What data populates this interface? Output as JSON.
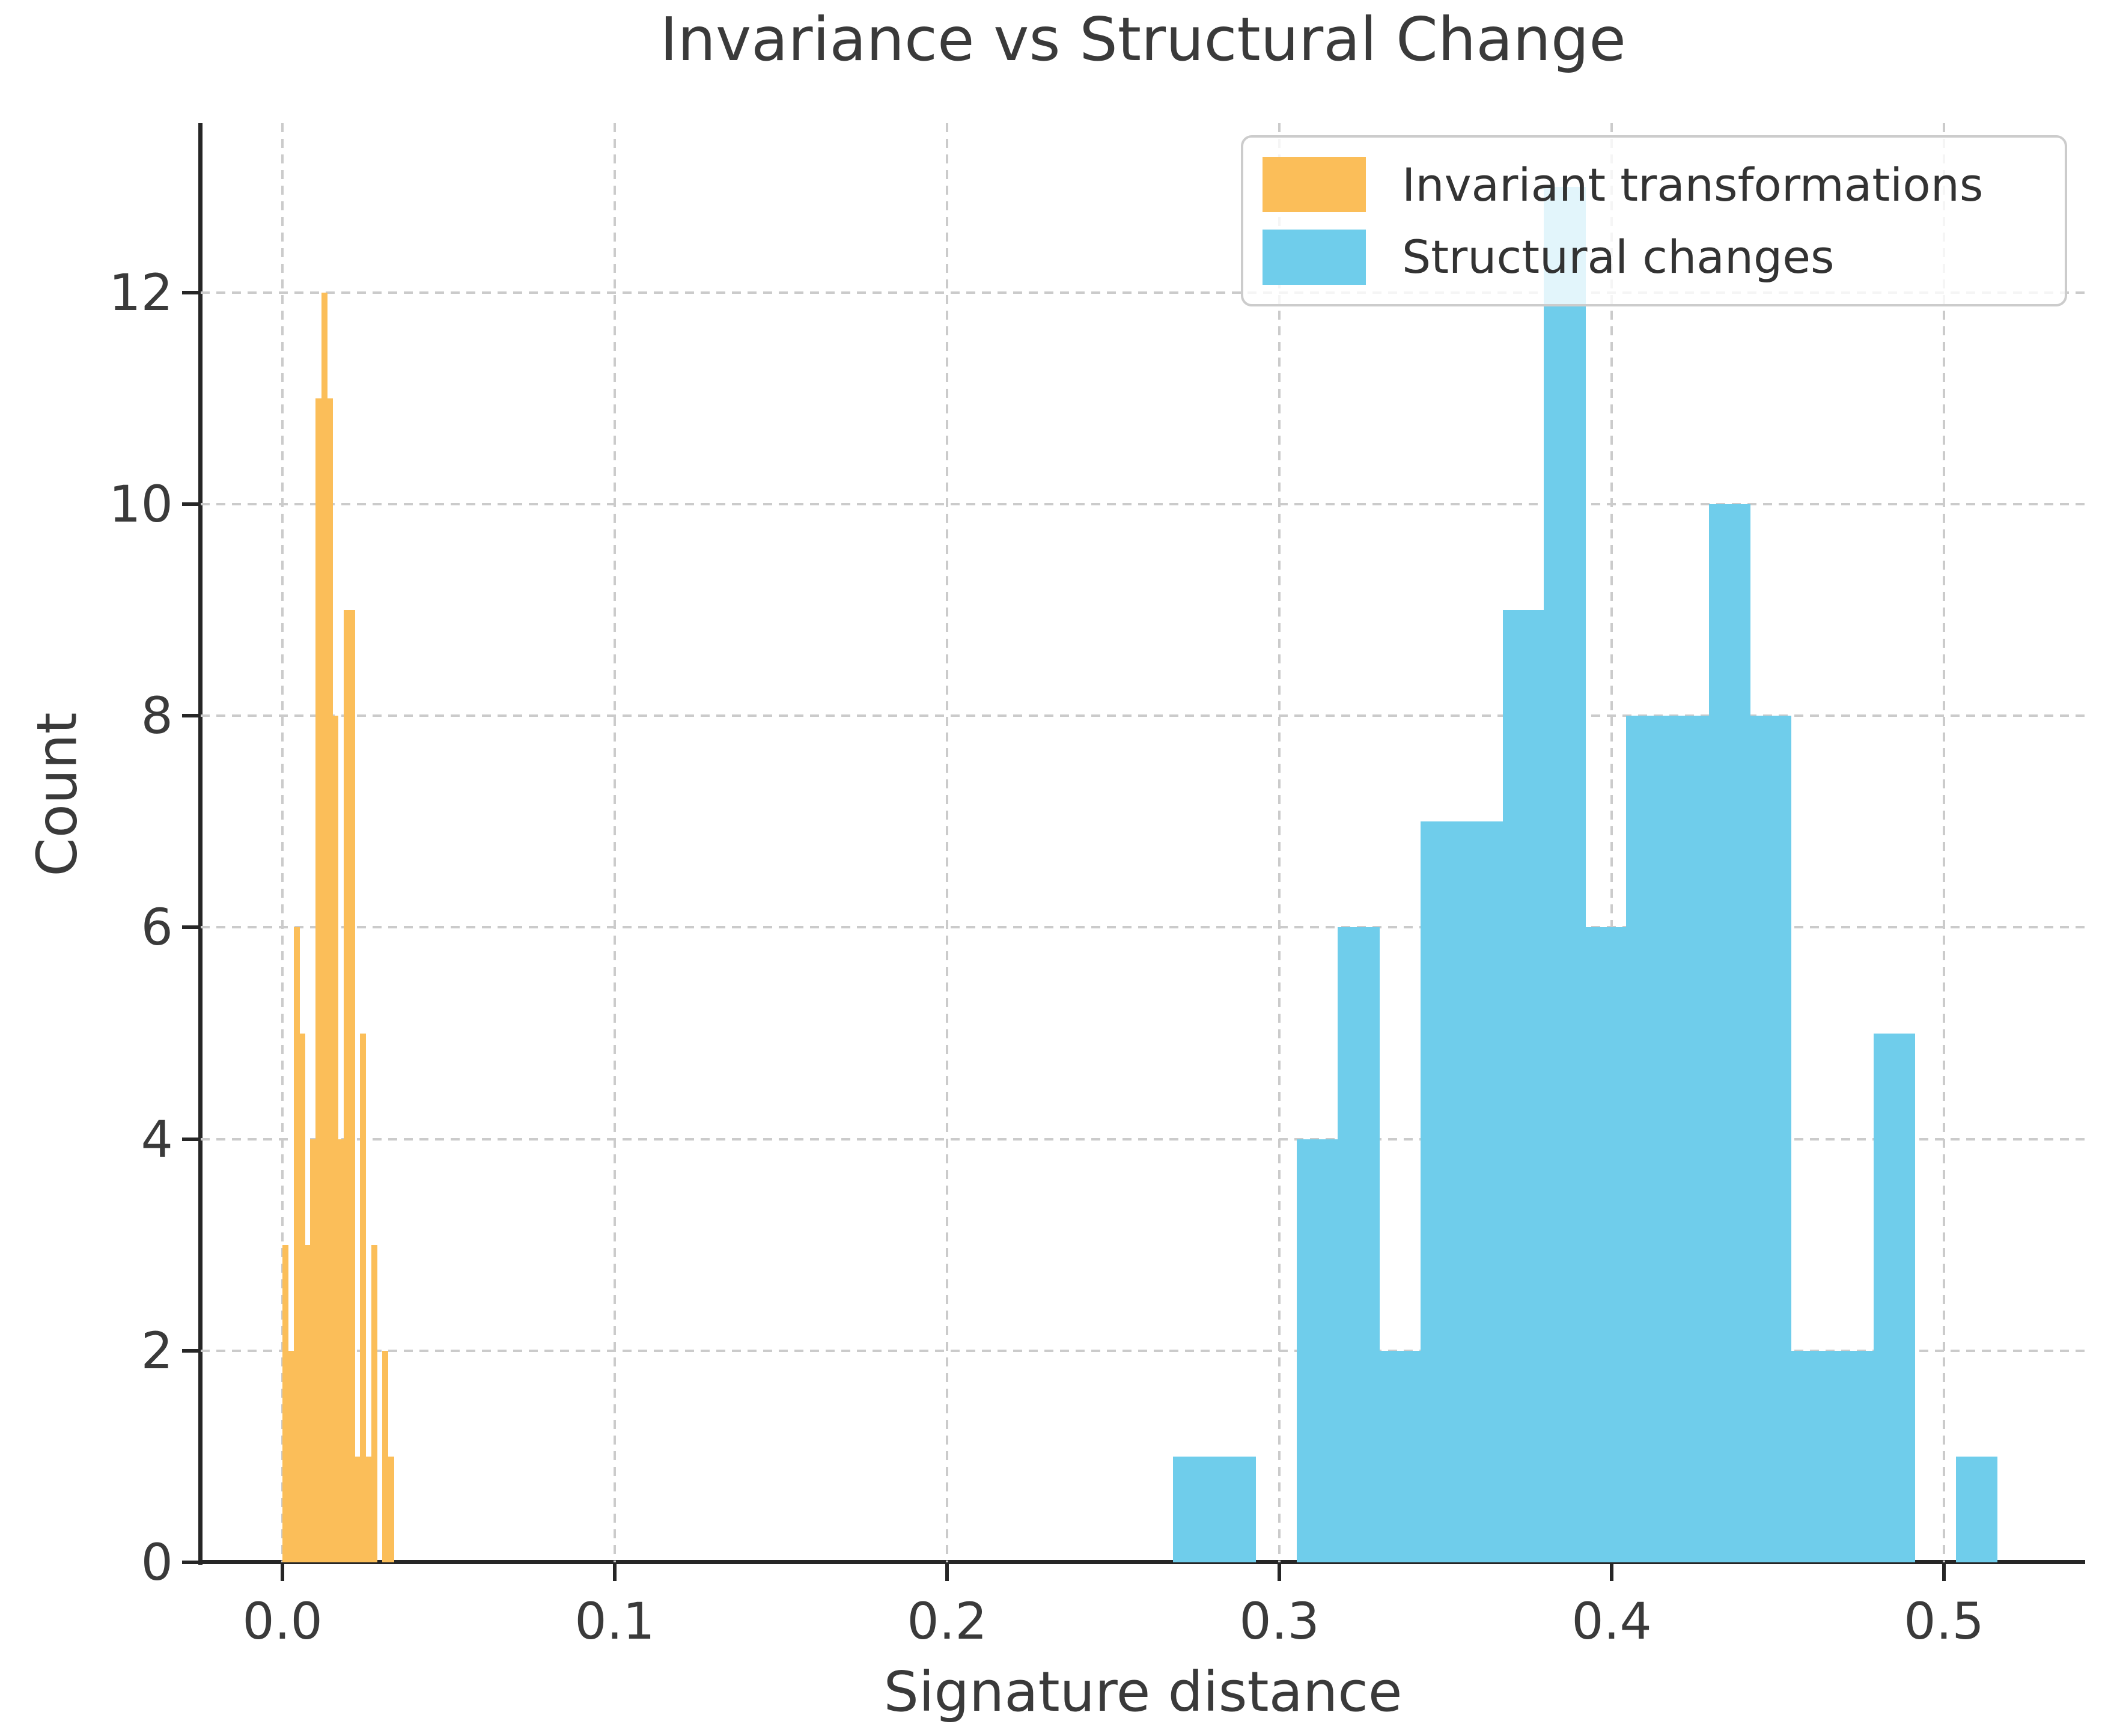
{
  "figure": {
    "title": "Invariance vs Structural Change",
    "x_axis": {
      "label": "Signature distance",
      "tick_labels": [
        "0.0",
        "0.1",
        "0.2",
        "0.3",
        "0.4",
        "0.5"
      ],
      "tick_values": [
        0.0,
        0.1,
        0.2,
        0.3,
        0.4,
        0.5
      ],
      "range": [
        -0.0246,
        0.5425
      ]
    },
    "y_axis": {
      "label": "Count",
      "tick_labels": [
        "0",
        "2",
        "4",
        "6",
        "8",
        "10",
        "12"
      ],
      "tick_values": [
        0,
        2,
        4,
        6,
        8,
        10,
        12
      ],
      "range": [
        0,
        13.6
      ]
    },
    "legend": {
      "items": [
        {
          "label": "Invariant transformations",
          "color": "#FBBE59"
        },
        {
          "label": "Structural changes",
          "color": "#6FCDEB"
        }
      ],
      "position": "upper right"
    },
    "colors": {
      "background": "#ffffff",
      "grid": "#cbcbcb",
      "spine": "#262626",
      "text": "#3a3a3a",
      "legend_border": "#cccccc",
      "legend_background_opacity": 0.8
    }
  },
  "chart_data": {
    "type": "bar",
    "subtype": "histogram",
    "title": "Invariance vs Structural Change",
    "xlabel": "Signature distance",
    "ylabel": "Count",
    "xlim": [
      -0.0246,
      0.5425
    ],
    "ylim": [
      0,
      13.6
    ],
    "grid": true,
    "grid_style": "dashed",
    "legend_position": "upper right",
    "series": [
      {
        "name": "Invariant transformations",
        "color": "#FBBE59",
        "bin_start": 0.0,
        "bin_width": 0.00167,
        "counts": [
          3,
          2,
          6,
          5,
          3,
          4,
          11,
          12,
          11,
          8,
          4,
          9,
          9,
          1,
          5,
          1,
          3,
          0,
          2,
          1
        ]
      },
      {
        "name": "Structural changes",
        "color": "#6FCDEB",
        "bin_start": 0.268,
        "bin_width": 0.0124,
        "counts": [
          1,
          1,
          0,
          4,
          6,
          2,
          7,
          7,
          9,
          13,
          6,
          8,
          8,
          10,
          8,
          2,
          2,
          5,
          0,
          1
        ]
      }
    ]
  }
}
